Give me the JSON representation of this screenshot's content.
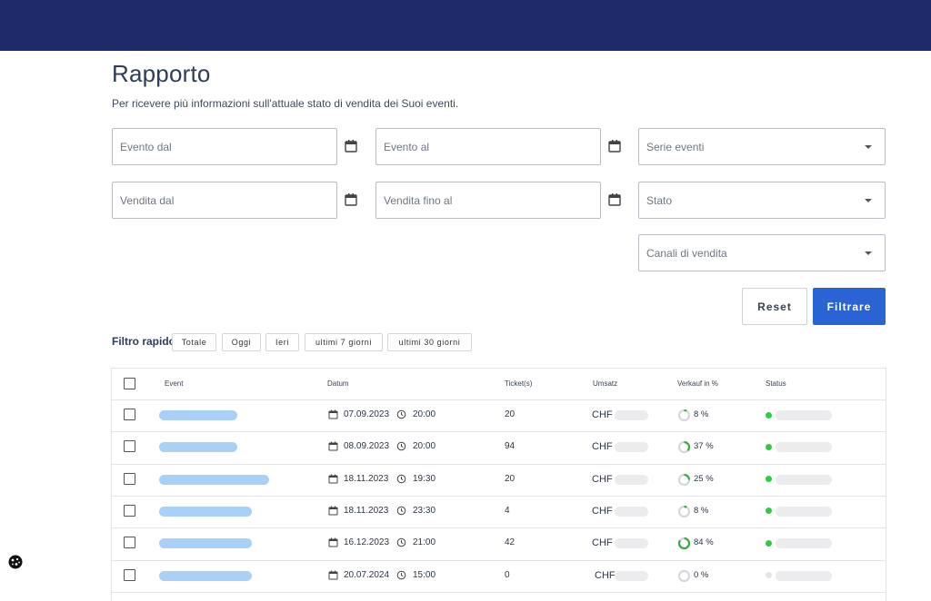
{
  "header": {
    "title": "Rapporto",
    "subtitle": "Per ricevere più informazioni sull'attuale stato di vendita dei Suoi eventi."
  },
  "filters": {
    "event_from": "Evento dal",
    "event_to": "Evento al",
    "series": "Serie eventi",
    "sale_from": "Vendita dal",
    "sale_to": "Vendita fino al",
    "status": "Stato",
    "channels": "Canali di vendita"
  },
  "icons": {
    "calendar": "calendar-icon",
    "clock": "clock-icon",
    "dropdown": "chevron-down-icon",
    "cookie": "cookie-icon"
  },
  "buttons": {
    "reset": "Reset",
    "filter": "Filtrare"
  },
  "quick_filter": {
    "label": "Filtro rapido",
    "chips": [
      "Totale",
      "Oggi",
      "Ieri",
      "ultimi 7 giorni",
      "ultimi 30 giorni"
    ]
  },
  "table": {
    "columns": [
      "Event",
      "Datum",
      "Ticket(s)",
      "Umsatz",
      "Verkauf in %",
      "Status"
    ],
    "currency": "CHF",
    "rows": [
      {
        "date": "07.09.2023",
        "time": "20:00",
        "tickets": "20",
        "sold_label": "8 %",
        "sold": 0.08,
        "status_color": "#2ecc40"
      },
      {
        "date": "08.09.2023",
        "time": "20:00",
        "tickets": "94",
        "sold_label": "37 %",
        "sold": 0.37,
        "status_color": "#2ecc40"
      },
      {
        "date": "18.11.2023",
        "time": "19:30",
        "tickets": "20",
        "sold_label": "25 %",
        "sold": 0.25,
        "status_color": "#2ecc40"
      },
      {
        "date": "18.11.2023",
        "time": "23:30",
        "tickets": "4",
        "sold_label": "8 %",
        "sold": 0.08,
        "status_color": "#2ecc40"
      },
      {
        "date": "16.12.2023",
        "time": "21:00",
        "tickets": "42",
        "sold_label": "84 %",
        "sold": 0.84,
        "status_color": "#2ecc40"
      },
      {
        "date": "20.07.2024",
        "time": "15:00",
        "tickets": "0",
        "sold_label": "0 %",
        "sold": 0,
        "status_color": "#e5e5e8"
      }
    ]
  },
  "colors": {
    "topbar": "#1f2a6b",
    "accent": "#2a63d4",
    "progress": "#3aa843",
    "placeholder_blue": "#a9d0f7"
  }
}
